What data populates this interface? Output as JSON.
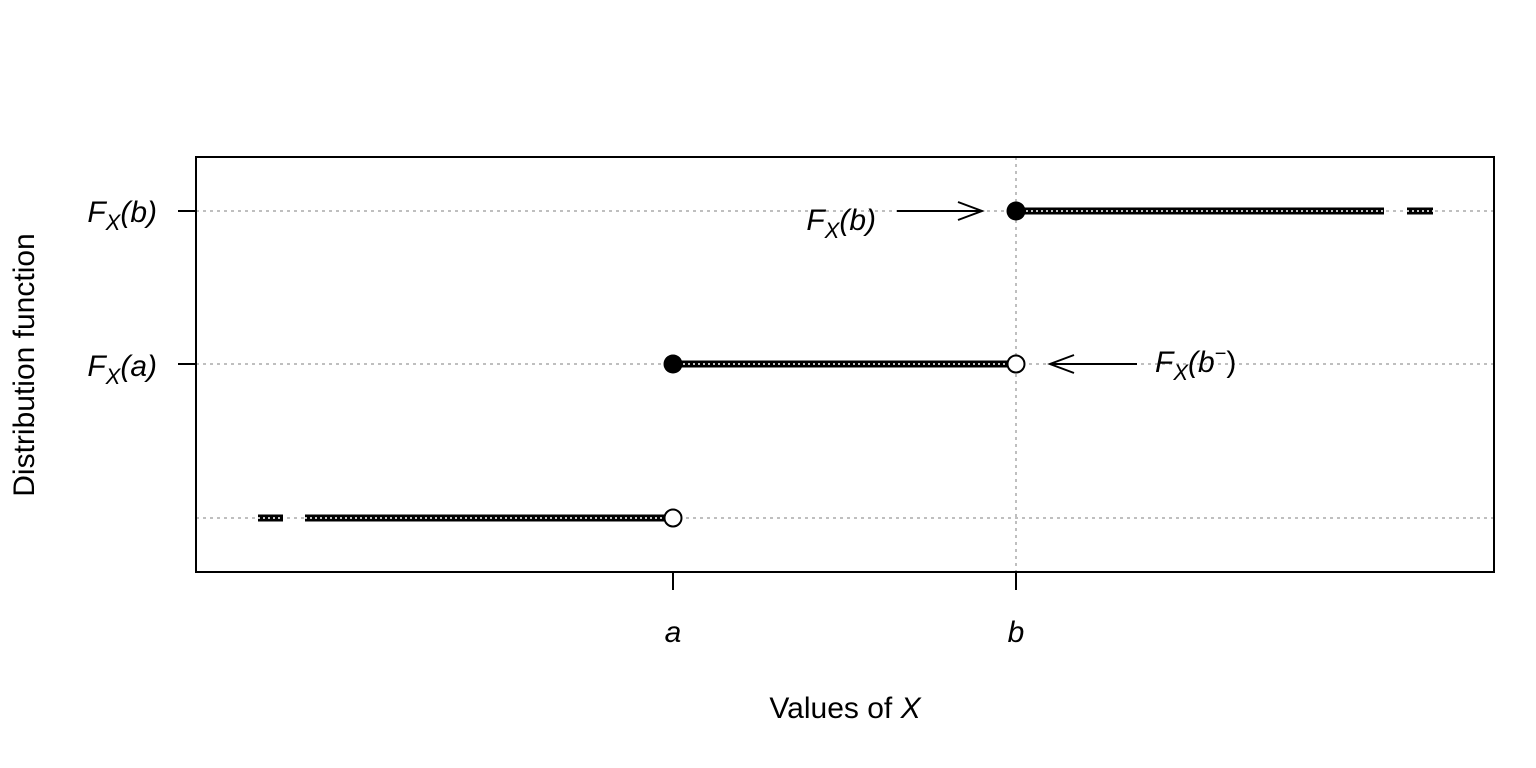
{
  "y_axis_label": "Distribution function",
  "x_axis_label": {
    "text": "Values of",
    "variable": "X"
  },
  "x_ticks": [
    "a",
    "b"
  ],
  "y_ticks": [
    {
      "function": "F",
      "subscript": "X",
      "argument": "(a)"
    },
    {
      "function": "F",
      "subscript": "X",
      "argument": "(b)"
    }
  ],
  "annotations": [
    {
      "function": "F",
      "subscript": "X",
      "argument": "(b)"
    },
    {
      "function": "F",
      "subscript": "X",
      "argument": "(b",
      "superscript": "−",
      "close": ")"
    }
  ]
}
